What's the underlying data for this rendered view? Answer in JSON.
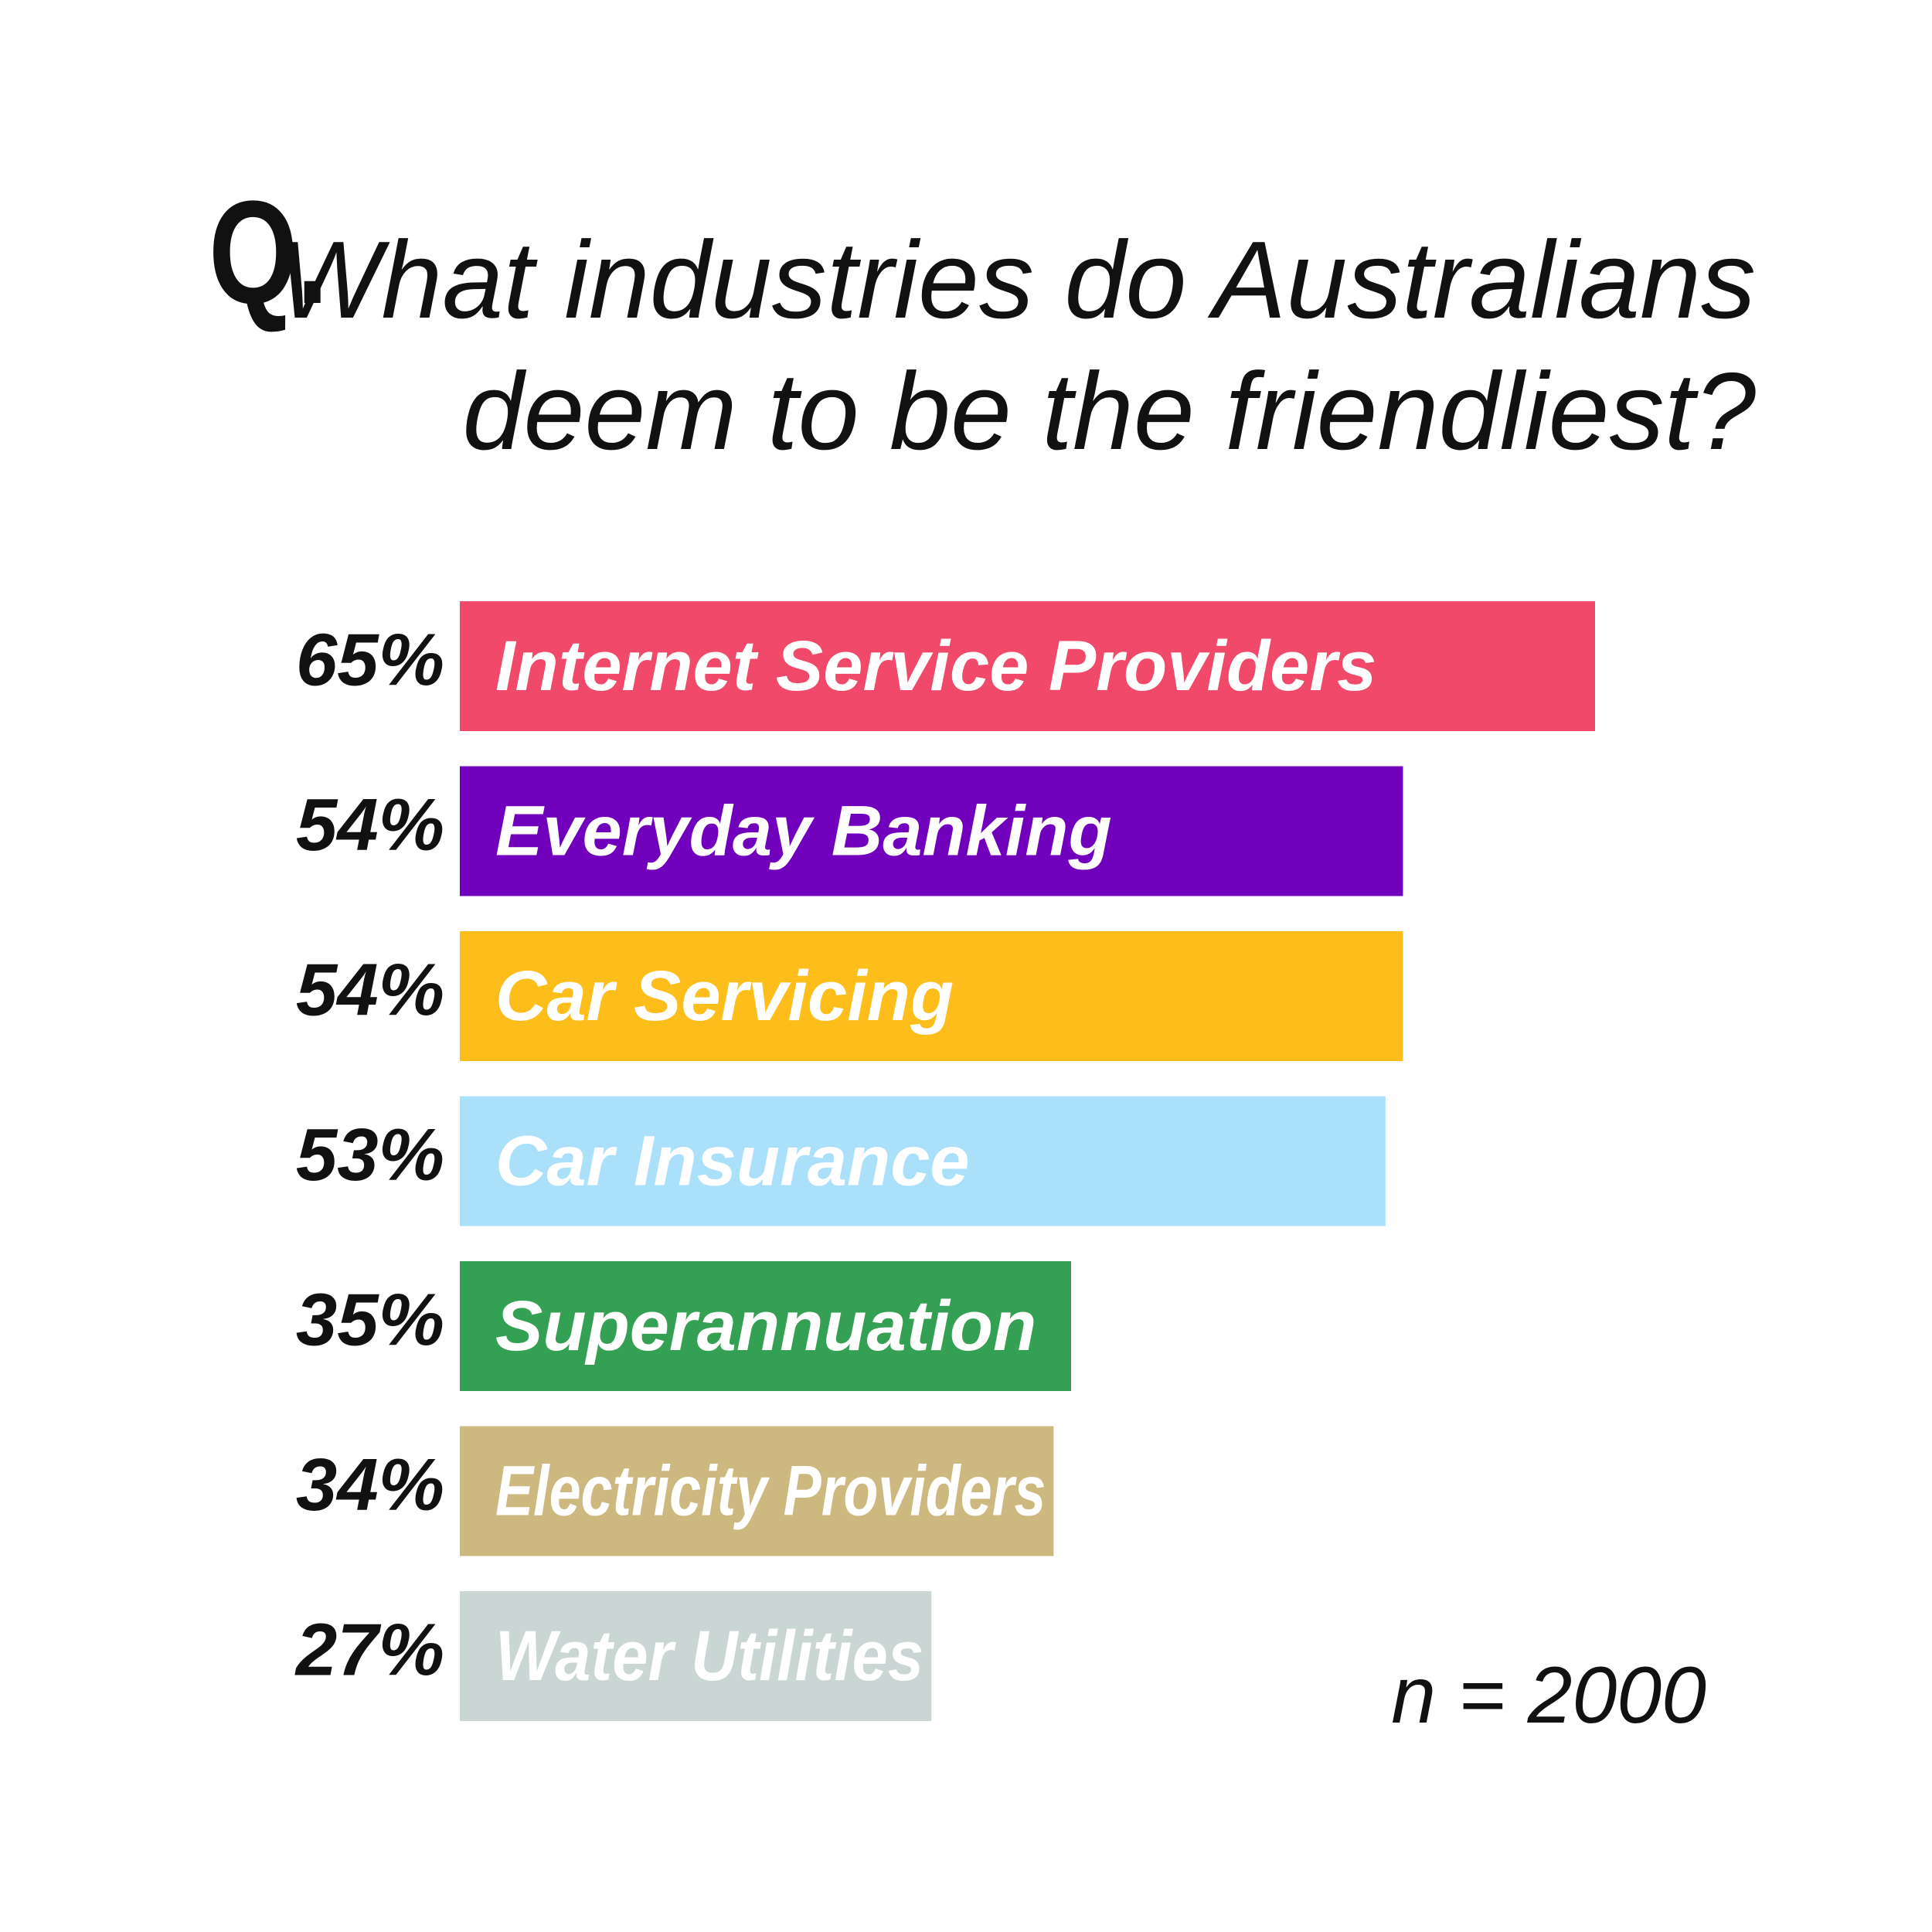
{
  "title": {
    "prefix": "Q.",
    "line1": "What industries do Australians",
    "line2": "deem to be the friendliest?"
  },
  "sample_note": "n = 2000",
  "chart_data": {
    "type": "bar",
    "orientation": "horizontal",
    "categories": [
      "Internet Service Providers",
      "Everyday Banking",
      "Car Servicing",
      "Car Insurance",
      "Superannuation",
      "Electricity Providers",
      "Water Utilities"
    ],
    "values": [
      65,
      54,
      54,
      53,
      35,
      34,
      27
    ],
    "value_labels": [
      "65%",
      "54%",
      "54%",
      "53%",
      "35%",
      "34%",
      "27%"
    ],
    "unit": "%",
    "colors": [
      "#F0496A",
      "#7000BC",
      "#FDBD1A",
      "#ABE0FA",
      "#34A054",
      "#CDB880",
      "#C9D6D3"
    ],
    "label_colors": [
      "#FFFFFF",
      "#FFFFFF",
      "#FFFFFF",
      "#FFFFFF",
      "#FFFFFF",
      "#FFFFFF",
      "#FFFFFF"
    ],
    "grid": false,
    "legend": "none"
  }
}
